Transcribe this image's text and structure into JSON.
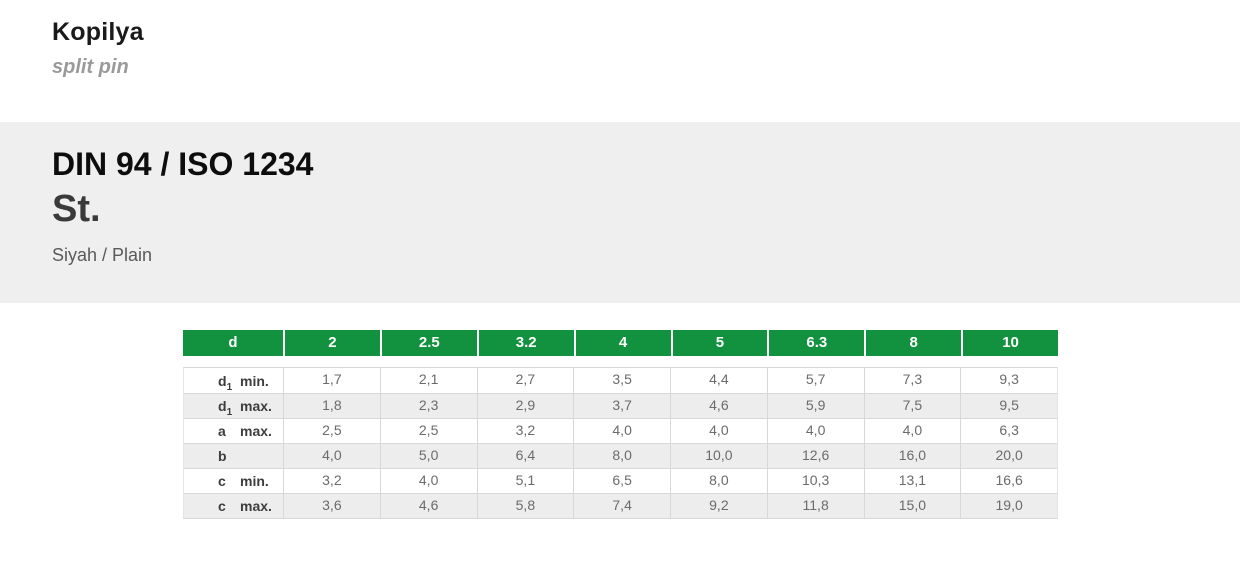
{
  "page": {
    "title": "Kopilya",
    "subtitle": "split pin"
  },
  "spec": {
    "standard": "DIN 94 / ISO 1234",
    "material": "St.",
    "finish": "Siyah / Plain"
  },
  "colors": {
    "header_green": "#12923f",
    "band_gray": "#efefef",
    "stripe_gray": "#ededed",
    "border_gray": "#d8d8d8"
  },
  "table": {
    "columns": [
      "d",
      "2",
      "2.5",
      "3.2",
      "4",
      "5",
      "6.3",
      "8",
      "10"
    ],
    "rows": [
      {
        "sym": "d",
        "sub": "1",
        "qual": "min.",
        "values": [
          "1,7",
          "2,1",
          "2,7",
          "3,5",
          "4,4",
          "5,7",
          "7,3",
          "9,3"
        ]
      },
      {
        "sym": "d",
        "sub": "1",
        "qual": "max.",
        "values": [
          "1,8",
          "2,3",
          "2,9",
          "3,7",
          "4,6",
          "5,9",
          "7,5",
          "9,5"
        ]
      },
      {
        "sym": "a",
        "sub": "",
        "qual": "max.",
        "values": [
          "2,5",
          "2,5",
          "3,2",
          "4,0",
          "4,0",
          "4,0",
          "4,0",
          "6,3"
        ]
      },
      {
        "sym": "b",
        "sub": "",
        "qual": "",
        "values": [
          "4,0",
          "5,0",
          "6,4",
          "8,0",
          "10,0",
          "12,6",
          "16,0",
          "20,0"
        ]
      },
      {
        "sym": "c",
        "sub": "",
        "qual": "min.",
        "values": [
          "3,2",
          "4,0",
          "5,1",
          "6,5",
          "8,0",
          "10,3",
          "13,1",
          "16,6"
        ]
      },
      {
        "sym": "c",
        "sub": "",
        "qual": "max.",
        "values": [
          "3,6",
          "4,6",
          "5,8",
          "7,4",
          "9,2",
          "11,8",
          "15,0",
          "19,0"
        ]
      }
    ]
  }
}
